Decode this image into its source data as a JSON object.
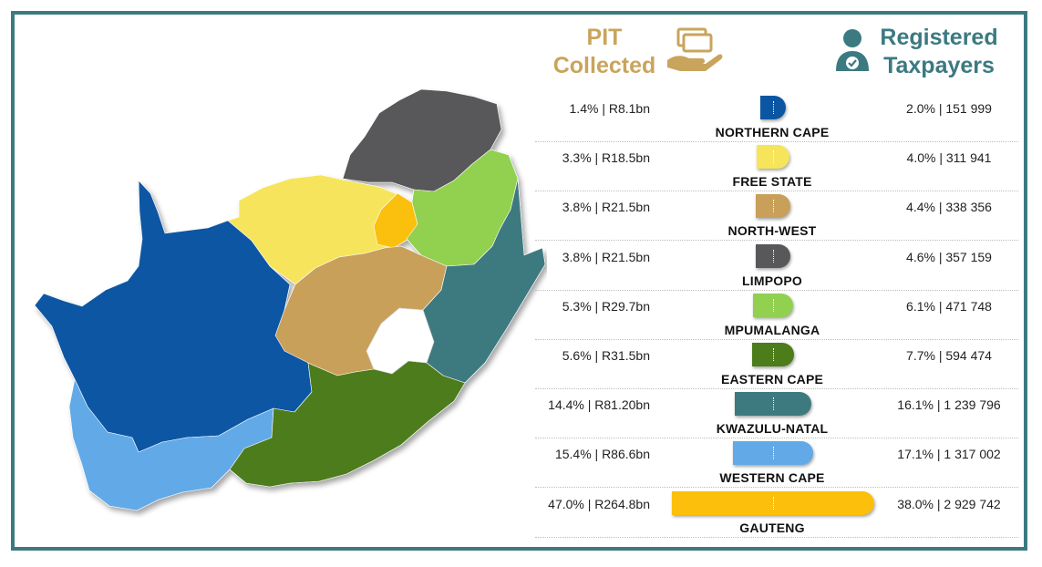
{
  "headers": {
    "pit_line1": "PIT",
    "pit_line2": "Collected",
    "tax_line1": "Registered",
    "tax_line2": "Taxpayers"
  },
  "icons": {
    "pit": "hand-holding-money-icon",
    "taxpayers": "taxpayer-person-icon"
  },
  "chart_data": {
    "type": "bar",
    "categories": [
      "NORTHERN CAPE",
      "FREE STATE",
      "NORTH-WEST",
      "LIMPOPO",
      "MPUMALANGA",
      "EASTERN CAPE",
      "KWAZULU-NATAL",
      "WESTERN CAPE",
      "GAUTENG"
    ],
    "pit_labels": [
      "1.4% | R8.1bn",
      "3.3% | R18.5bn",
      "3.8% | R21.5bn",
      "3.8% | R21.5bn",
      "5.3% | R29.7bn",
      "5.6% | R31.5bn",
      "14.4% | R81.20bn",
      "15.4% | R86.6bn",
      "47.0% | R264.8bn"
    ],
    "taxpayer_labels": [
      "2.0% | 151 999",
      "4.0% | 311 941",
      "4.4% | 338 356",
      "4.6% | 357 159",
      "6.1% | 471 748",
      "7.7% | 594 474",
      "16.1% | 1 239 796",
      "17.1% | 1 317 002",
      "38.0% | 2 929 742"
    ],
    "series": [
      {
        "values": [
          1.4,
          3.3,
          3.8,
          3.8,
          5.3,
          5.6,
          14.4,
          15.4,
          47.0
        ]
      },
      {
        "values": [
          2.0,
          4.0,
          4.4,
          4.6,
          6.1,
          7.7,
          16.1,
          17.1,
          38.0
        ]
      }
    ],
    "bar_series": "PIT Collected",
    "pit_amounts_rbn": [
      8.1,
      18.5,
      21.5,
      21.5,
      29.7,
      31.5,
      81.2,
      86.6,
      264.8
    ],
    "taxpayers": [
      151999,
      311941,
      338356,
      357159,
      471748,
      594474,
      1239796,
      1317002,
      2929742
    ],
    "colors": [
      "#0b56a3",
      "#f6e55b",
      "#c8a05a",
      "#58585a",
      "#92d050",
      "#4d7c1a",
      "#3d7a80",
      "#62a9e8",
      "#fbbf0c"
    ]
  }
}
